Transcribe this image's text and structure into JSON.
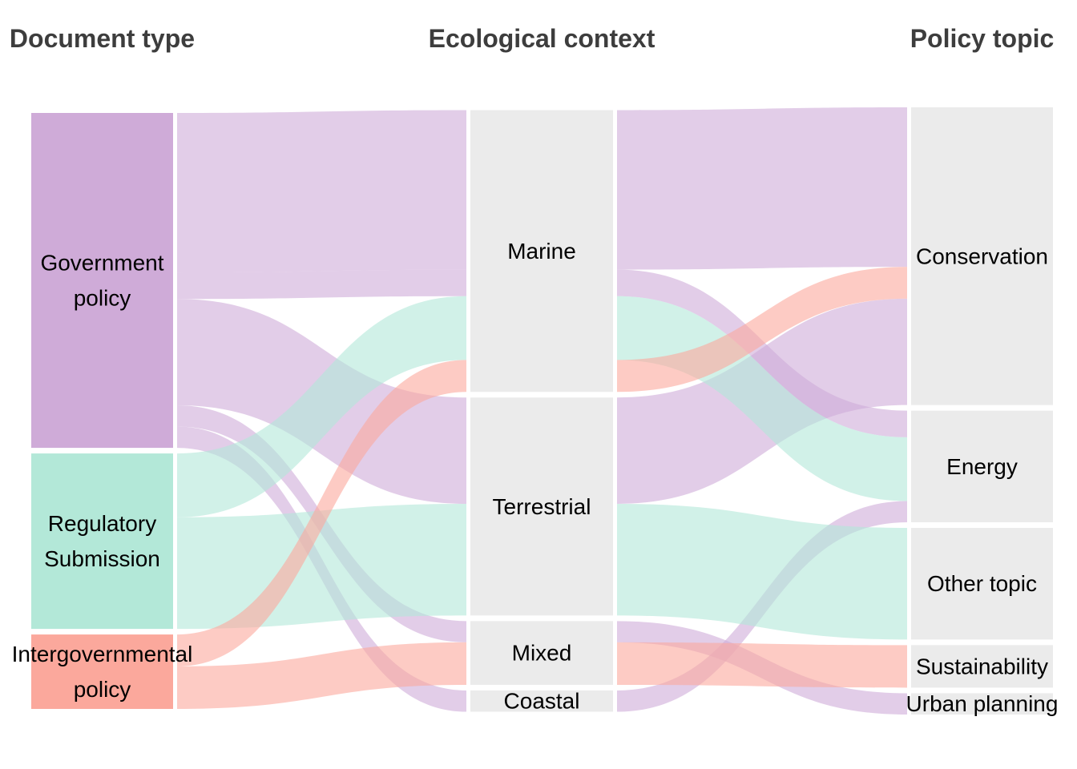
{
  "axes": [
    {
      "id": "doc",
      "title": "Document type"
    },
    {
      "id": "eco",
      "title": "Ecological context"
    },
    {
      "id": "topic",
      "title": "Policy topic"
    }
  ],
  "nodes": {
    "doc": [
      {
        "id": "gov",
        "lines": [
          "Government",
          "policy"
        ],
        "color": "#cfabd8"
      },
      {
        "id": "reg",
        "lines": [
          "Regulatory",
          "Submission"
        ],
        "color": "#b3e8d8"
      },
      {
        "id": "int",
        "lines": [
          "Intergovernmental",
          "policy"
        ],
        "color": "#fba89c"
      }
    ],
    "eco": [
      {
        "id": "marine",
        "lines": [
          "Marine"
        ],
        "color": "#ebebeb"
      },
      {
        "id": "terr",
        "lines": [
          "Terrestrial"
        ],
        "color": "#ebebeb"
      },
      {
        "id": "mixed",
        "lines": [
          "Mixed"
        ],
        "color": "#ebebeb"
      },
      {
        "id": "coastal",
        "lines": [
          "Coastal"
        ],
        "color": "#ebebeb"
      }
    ],
    "topic": [
      {
        "id": "cons",
        "lines": [
          "Conservation"
        ],
        "color": "#ebebeb"
      },
      {
        "id": "energy",
        "lines": [
          "Energy"
        ],
        "color": "#ebebeb"
      },
      {
        "id": "other",
        "lines": [
          "Other topic"
        ],
        "color": "#ebebeb"
      },
      {
        "id": "sust",
        "lines": [
          "Sustainability"
        ],
        "color": "#ebebeb"
      },
      {
        "id": "urban",
        "lines": [
          "Urban planning"
        ],
        "color": "#ebebeb"
      }
    ]
  },
  "flows": [
    {
      "doc": "gov",
      "eco": "marine",
      "topic": "cons",
      "value": 30
    },
    {
      "doc": "gov",
      "eco": "marine",
      "topic": "energy",
      "value": 5
    },
    {
      "doc": "gov",
      "eco": "terr",
      "topic": "cons",
      "value": 20
    },
    {
      "doc": "gov",
      "eco": "mixed",
      "topic": "urban",
      "value": 4
    },
    {
      "doc": "gov",
      "eco": "coastal",
      "topic": "energy",
      "value": 4
    },
    {
      "doc": "reg",
      "eco": "marine",
      "topic": "energy",
      "value": 12
    },
    {
      "doc": "reg",
      "eco": "terr",
      "topic": "other",
      "value": 21
    },
    {
      "doc": "int",
      "eco": "marine",
      "topic": "cons",
      "value": 6
    },
    {
      "doc": "int",
      "eco": "mixed",
      "topic": "sust",
      "value": 8
    }
  ],
  "colors": {
    "gov": "#cfabd8",
    "reg": "#b3e8d8",
    "int": "#fba89c",
    "stratum": "#ebebeb",
    "flow_alpha": 0.6
  }
}
